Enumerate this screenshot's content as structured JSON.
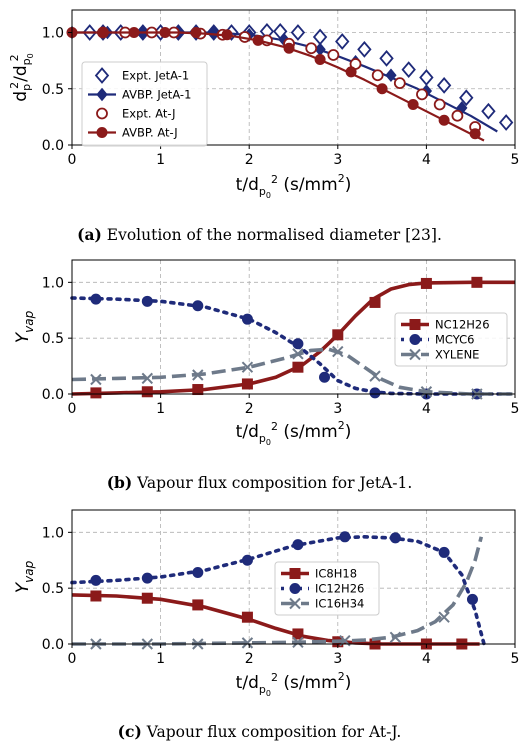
{
  "chart_data": [
    {
      "type": "line",
      "panel": "a",
      "ylabel": "d_p^2/d_{p_0}^2",
      "xlabel": "t/d_{p_0}^2 (s/mm²)",
      "xlim": [
        0,
        5
      ],
      "ylim": [
        0,
        1.2
      ],
      "xticks": [
        "0",
        "1",
        "2",
        "3",
        "4",
        "5"
      ],
      "yticks": [
        "0.0",
        "0.5",
        "1.0"
      ],
      "grid": true,
      "legend_position": "center-left",
      "caption_tag": "(a)",
      "caption_text": " Evolution of the normalised diameter [23].",
      "colors": {
        "jeta1": "#1f2b7a",
        "atj": "#8b1a1a"
      },
      "series": [
        {
          "name": "Expt. JetA-1",
          "style": "open-diamond",
          "color": "#1f2b7a",
          "x": [
            0.2,
            0.35,
            0.55,
            0.8,
            1.0,
            1.2,
            1.4,
            1.6,
            1.8,
            2.0,
            2.2,
            2.35,
            2.55,
            2.8,
            3.05,
            3.3,
            3.55,
            3.8,
            4.0,
            4.2,
            4.45,
            4.7,
            4.9
          ],
          "y": [
            1.0,
            1.0,
            1.0,
            1.0,
            1.0,
            1.0,
            1.0,
            1.0,
            1.0,
            1.0,
            1.01,
            1.01,
            1.0,
            0.96,
            0.92,
            0.85,
            0.77,
            0.67,
            0.6,
            0.53,
            0.42,
            0.3,
            0.2
          ]
        },
        {
          "name": "AVBP. JetA-1",
          "style": "filled-diamond-line",
          "color": "#1f2b7a",
          "x": [
            0.0,
            0.3,
            0.6,
            0.9,
            1.2,
            1.5,
            1.8,
            2.1,
            2.4,
            2.7,
            3.0,
            3.3,
            3.6,
            3.9,
            4.2,
            4.5,
            4.8
          ],
          "y": [
            1.0,
            1.0,
            1.0,
            1.0,
            1.0,
            1.0,
            0.99,
            0.97,
            0.93,
            0.87,
            0.79,
            0.7,
            0.6,
            0.5,
            0.38,
            0.26,
            0.12
          ],
          "marker_x": [
            0.0,
            0.4,
            0.8,
            1.2,
            1.6,
            2.0,
            2.4,
            2.8,
            3.2,
            3.6,
            4.0,
            4.4
          ],
          "marker_y": [
            1.0,
            1.0,
            1.0,
            1.0,
            1.0,
            0.98,
            0.93,
            0.85,
            0.74,
            0.62,
            0.48,
            0.33
          ]
        },
        {
          "name": "Expt. At-J",
          "style": "open-circle",
          "color": "#8b1a1a",
          "x": [
            0.35,
            0.6,
            0.9,
            1.15,
            1.45,
            1.7,
            1.95,
            2.2,
            2.45,
            2.7,
            2.95,
            3.2,
            3.45,
            3.7,
            3.95,
            4.15,
            4.35,
            4.55
          ],
          "y": [
            1.0,
            1.0,
            1.0,
            1.0,
            0.99,
            0.98,
            0.96,
            0.93,
            0.9,
            0.86,
            0.8,
            0.72,
            0.62,
            0.55,
            0.45,
            0.36,
            0.26,
            0.16
          ]
        },
        {
          "name": "AVBP. At-J",
          "style": "filled-circle-line",
          "color": "#8b1a1a",
          "x": [
            0.0,
            0.3,
            0.6,
            0.9,
            1.2,
            1.5,
            1.8,
            2.1,
            2.4,
            2.7,
            3.0,
            3.3,
            3.6,
            3.9,
            4.2,
            4.5,
            4.65
          ],
          "y": [
            1.0,
            1.0,
            1.0,
            1.0,
            1.0,
            0.99,
            0.97,
            0.93,
            0.87,
            0.79,
            0.69,
            0.58,
            0.46,
            0.34,
            0.22,
            0.1,
            0.04
          ],
          "marker_x": [
            0.0,
            0.35,
            0.7,
            1.05,
            1.4,
            1.75,
            2.1,
            2.45,
            2.8,
            3.15,
            3.5,
            3.85,
            4.2,
            4.55
          ],
          "marker_y": [
            1.0,
            1.0,
            1.0,
            1.0,
            1.0,
            0.98,
            0.93,
            0.86,
            0.76,
            0.65,
            0.5,
            0.36,
            0.22,
            0.1
          ]
        }
      ]
    },
    {
      "type": "line",
      "panel": "b",
      "ylabel": "Y_vap",
      "xlabel": "t/d_{p_0}^2 (s/mm²)",
      "xlim": [
        0,
        5
      ],
      "ylim": [
        0,
        1.2
      ],
      "xticks": [
        "0",
        "1",
        "2",
        "3",
        "4",
        "5"
      ],
      "yticks": [
        "0.0",
        "0.5",
        "1.0"
      ],
      "grid": true,
      "legend_position": "center-right",
      "caption_tag": "(b)",
      "caption_text": " Vapour flux composition for JetA-1.",
      "colors": {
        "nc12h26": "#8b1a1a",
        "mcyc6": "#1f2b7a",
        "xylene": "#6e7a8a"
      },
      "series": [
        {
          "name": "NC12H26",
          "style": "solid-square",
          "color": "#8b1a1a",
          "x": [
            0.0,
            0.5,
            1.0,
            1.5,
            2.0,
            2.3,
            2.6,
            2.8,
            3.0,
            3.2,
            3.4,
            3.6,
            3.8,
            4.0,
            4.5,
            5.0
          ],
          "y": [
            0.0,
            0.01,
            0.02,
            0.04,
            0.09,
            0.15,
            0.26,
            0.38,
            0.53,
            0.7,
            0.85,
            0.94,
            0.98,
            0.995,
            1.0,
            1.0
          ],
          "marker_x": [
            0.27,
            0.85,
            1.42,
            1.98,
            2.55,
            3.0,
            3.42,
            4.0,
            4.57
          ],
          "marker_y": [
            0.01,
            0.02,
            0.04,
            0.09,
            0.24,
            0.53,
            0.82,
            0.99,
            1.0
          ]
        },
        {
          "name": "MCYC6",
          "style": "dotted-circle",
          "color": "#1f2b7a",
          "x": [
            0.0,
            0.5,
            1.0,
            1.5,
            2.0,
            2.3,
            2.6,
            2.8,
            3.0,
            3.2,
            3.4,
            3.6,
            4.0,
            4.5,
            5.0
          ],
          "y": [
            0.86,
            0.85,
            0.83,
            0.78,
            0.67,
            0.55,
            0.4,
            0.27,
            0.12,
            0.05,
            0.02,
            0.005,
            0.0,
            0.0,
            0.0
          ],
          "marker_x": [
            0.27,
            0.85,
            1.42,
            1.98,
            2.55,
            2.85,
            3.42,
            4.0,
            4.57
          ],
          "marker_y": [
            0.85,
            0.83,
            0.79,
            0.67,
            0.45,
            0.15,
            0.01,
            0.0,
            0.0
          ]
        },
        {
          "name": "XYLENE",
          "style": "dashed-x",
          "color": "#6e7a8a",
          "x": [
            0.0,
            0.5,
            1.0,
            1.5,
            2.0,
            2.4,
            2.7,
            2.9,
            3.1,
            3.3,
            3.5,
            3.7,
            4.0,
            4.5,
            5.0
          ],
          "y": [
            0.13,
            0.14,
            0.15,
            0.18,
            0.24,
            0.32,
            0.39,
            0.4,
            0.35,
            0.24,
            0.13,
            0.06,
            0.02,
            0.0,
            0.0
          ],
          "marker_x": [
            0.27,
            0.85,
            1.42,
            1.98,
            2.55,
            3.0,
            3.42,
            4.0,
            4.57
          ],
          "marker_y": [
            0.13,
            0.14,
            0.17,
            0.24,
            0.36,
            0.38,
            0.16,
            0.02,
            0.0
          ]
        }
      ]
    },
    {
      "type": "line",
      "panel": "c",
      "ylabel": "Y_vap",
      "xlabel": "t/d_{p_0}^2 (s/mm²)",
      "xlim": [
        0,
        5
      ],
      "ylim": [
        0,
        1.2
      ],
      "xticks": [
        "0",
        "1",
        "2",
        "3",
        "4",
        "5"
      ],
      "yticks": [
        "0.0",
        "0.5",
        "1.0"
      ],
      "grid": true,
      "legend_position": "center",
      "caption_tag": "(c)",
      "caption_text": " Vapour flux composition for At-J.",
      "colors": {
        "ic8h18": "#8b1a1a",
        "ic12h26": "#1f2b7a",
        "ic16h34": "#6e7a8a"
      },
      "series": [
        {
          "name": "IC8H18",
          "style": "solid-square",
          "color": "#8b1a1a",
          "x": [
            0.0,
            0.5,
            1.0,
            1.5,
            2.0,
            2.3,
            2.6,
            2.9,
            3.2,
            3.5,
            4.0,
            4.5,
            4.6
          ],
          "y": [
            0.44,
            0.43,
            0.4,
            0.33,
            0.22,
            0.14,
            0.07,
            0.03,
            0.01,
            0.0,
            0.0,
            0.0,
            0.0
          ],
          "marker_x": [
            0.27,
            0.85,
            1.42,
            1.98,
            2.55,
            3.0,
            3.42,
            4.0,
            4.4
          ],
          "marker_y": [
            0.43,
            0.41,
            0.35,
            0.24,
            0.09,
            0.02,
            0.0,
            0.0,
            0.0
          ]
        },
        {
          "name": "IC12H26",
          "style": "dotted-circle",
          "color": "#1f2b7a",
          "x": [
            0.0,
            0.5,
            1.0,
            1.5,
            2.0,
            2.5,
            3.0,
            3.3,
            3.6,
            3.9,
            4.2,
            4.4,
            4.55,
            4.65
          ],
          "y": [
            0.55,
            0.57,
            0.6,
            0.66,
            0.76,
            0.88,
            0.95,
            0.96,
            0.95,
            0.92,
            0.82,
            0.62,
            0.3,
            0.0
          ],
          "marker_x": [
            0.27,
            0.85,
            1.42,
            1.98,
            2.55,
            3.08,
            3.65,
            4.2,
            4.52
          ],
          "marker_y": [
            0.57,
            0.59,
            0.64,
            0.75,
            0.89,
            0.96,
            0.95,
            0.82,
            0.4
          ]
        },
        {
          "name": "IC16H34",
          "style": "dashed-x",
          "color": "#6e7a8a",
          "x": [
            0.0,
            0.5,
            1.0,
            1.5,
            2.0,
            2.5,
            3.0,
            3.3,
            3.6,
            3.9,
            4.1,
            4.3,
            4.45,
            4.55,
            4.62
          ],
          "y": [
            0.0,
            0.0,
            0.0,
            0.005,
            0.01,
            0.015,
            0.025,
            0.035,
            0.06,
            0.12,
            0.2,
            0.35,
            0.55,
            0.75,
            0.96
          ],
          "marker_x": [
            0.27,
            0.85,
            1.42,
            1.98,
            2.55,
            3.08,
            3.65,
            4.2
          ],
          "marker_y": [
            0.0,
            0.0,
            0.0,
            0.01,
            0.015,
            0.03,
            0.06,
            0.24
          ]
        }
      ]
    }
  ]
}
